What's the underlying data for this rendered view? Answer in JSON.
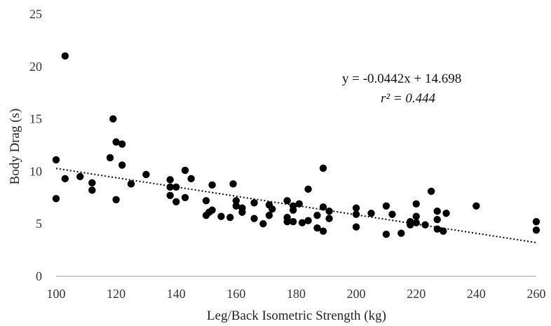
{
  "chart_data": {
    "type": "scatter",
    "xlabel": "Leg/Back Isometric Strength (kg)",
    "ylabel": "Body Drag (s)",
    "xlim": [
      100,
      260
    ],
    "ylim": [
      0,
      25
    ],
    "xticks": [
      "100",
      "120",
      "140",
      "160",
      "180",
      "200",
      "220",
      "240",
      "260"
    ],
    "yticks": [
      "0",
      "5",
      "10",
      "15",
      "20",
      "25"
    ],
    "grid": false,
    "legend": "none",
    "marker_color": "#000000",
    "trendline": {
      "style": "dotted",
      "color": "#000000",
      "slope": -0.0442,
      "intercept": 14.698,
      "equation_label": "y = -0.0442x + 14.698",
      "r2_label": "r² = 0.444"
    },
    "points": [
      {
        "x": 100,
        "y": 11.1
      },
      {
        "x": 100,
        "y": 7.4
      },
      {
        "x": 103,
        "y": 21.0
      },
      {
        "x": 103,
        "y": 9.3
      },
      {
        "x": 108,
        "y": 9.5
      },
      {
        "x": 112,
        "y": 8.9
      },
      {
        "x": 112,
        "y": 8.2
      },
      {
        "x": 118,
        "y": 11.3
      },
      {
        "x": 119,
        "y": 15.0
      },
      {
        "x": 120,
        "y": 12.8
      },
      {
        "x": 120,
        "y": 7.3
      },
      {
        "x": 122,
        "y": 12.6
      },
      {
        "x": 122,
        "y": 10.6
      },
      {
        "x": 125,
        "y": 8.8
      },
      {
        "x": 130,
        "y": 9.7
      },
      {
        "x": 138,
        "y": 9.2
      },
      {
        "x": 138,
        "y": 8.5
      },
      {
        "x": 138,
        "y": 7.7
      },
      {
        "x": 140,
        "y": 8.5
      },
      {
        "x": 140,
        "y": 7.1
      },
      {
        "x": 143,
        "y": 10.1
      },
      {
        "x": 143,
        "y": 7.5
      },
      {
        "x": 145,
        "y": 9.3
      },
      {
        "x": 150,
        "y": 7.2
      },
      {
        "x": 150,
        "y": 5.8
      },
      {
        "x": 151,
        "y": 6.1
      },
      {
        "x": 152,
        "y": 8.7
      },
      {
        "x": 152,
        "y": 6.3
      },
      {
        "x": 155,
        "y": 5.7
      },
      {
        "x": 158,
        "y": 5.6
      },
      {
        "x": 159,
        "y": 8.8
      },
      {
        "x": 160,
        "y": 7.2
      },
      {
        "x": 160,
        "y": 6.7
      },
      {
        "x": 162,
        "y": 6.5
      },
      {
        "x": 162,
        "y": 6.1
      },
      {
        "x": 166,
        "y": 7.0
      },
      {
        "x": 166,
        "y": 5.5
      },
      {
        "x": 169,
        "y": 5.0
      },
      {
        "x": 171,
        "y": 6.8
      },
      {
        "x": 171,
        "y": 5.8
      },
      {
        "x": 172,
        "y": 6.4
      },
      {
        "x": 177,
        "y": 7.2
      },
      {
        "x": 177,
        "y": 5.6
      },
      {
        "x": 177,
        "y": 5.2
      },
      {
        "x": 179,
        "y": 6.7
      },
      {
        "x": 179,
        "y": 6.3
      },
      {
        "x": 179,
        "y": 5.2
      },
      {
        "x": 181,
        "y": 6.9
      },
      {
        "x": 182,
        "y": 5.1
      },
      {
        "x": 184,
        "y": 8.3
      },
      {
        "x": 184,
        "y": 5.3
      },
      {
        "x": 187,
        "y": 5.8
      },
      {
        "x": 187,
        "y": 4.6
      },
      {
        "x": 189,
        "y": 10.3
      },
      {
        "x": 189,
        "y": 6.6
      },
      {
        "x": 189,
        "y": 4.3
      },
      {
        "x": 191,
        "y": 6.2
      },
      {
        "x": 191,
        "y": 5.5
      },
      {
        "x": 200,
        "y": 6.5
      },
      {
        "x": 200,
        "y": 5.9
      },
      {
        "x": 200,
        "y": 4.7
      },
      {
        "x": 205,
        "y": 6.0
      },
      {
        "x": 210,
        "y": 6.7
      },
      {
        "x": 210,
        "y": 4.0
      },
      {
        "x": 212,
        "y": 5.9
      },
      {
        "x": 215,
        "y": 4.1
      },
      {
        "x": 218,
        "y": 5.2
      },
      {
        "x": 218,
        "y": 4.9
      },
      {
        "x": 220,
        "y": 6.9
      },
      {
        "x": 220,
        "y": 5.7
      },
      {
        "x": 220,
        "y": 5.1
      },
      {
        "x": 223,
        "y": 4.9
      },
      {
        "x": 225,
        "y": 8.1
      },
      {
        "x": 227,
        "y": 6.2
      },
      {
        "x": 227,
        "y": 5.4
      },
      {
        "x": 227,
        "y": 4.5
      },
      {
        "x": 229,
        "y": 4.3
      },
      {
        "x": 230,
        "y": 6.0
      },
      {
        "x": 240,
        "y": 6.7
      },
      {
        "x": 260,
        "y": 5.2
      },
      {
        "x": 260,
        "y": 4.4
      }
    ]
  }
}
